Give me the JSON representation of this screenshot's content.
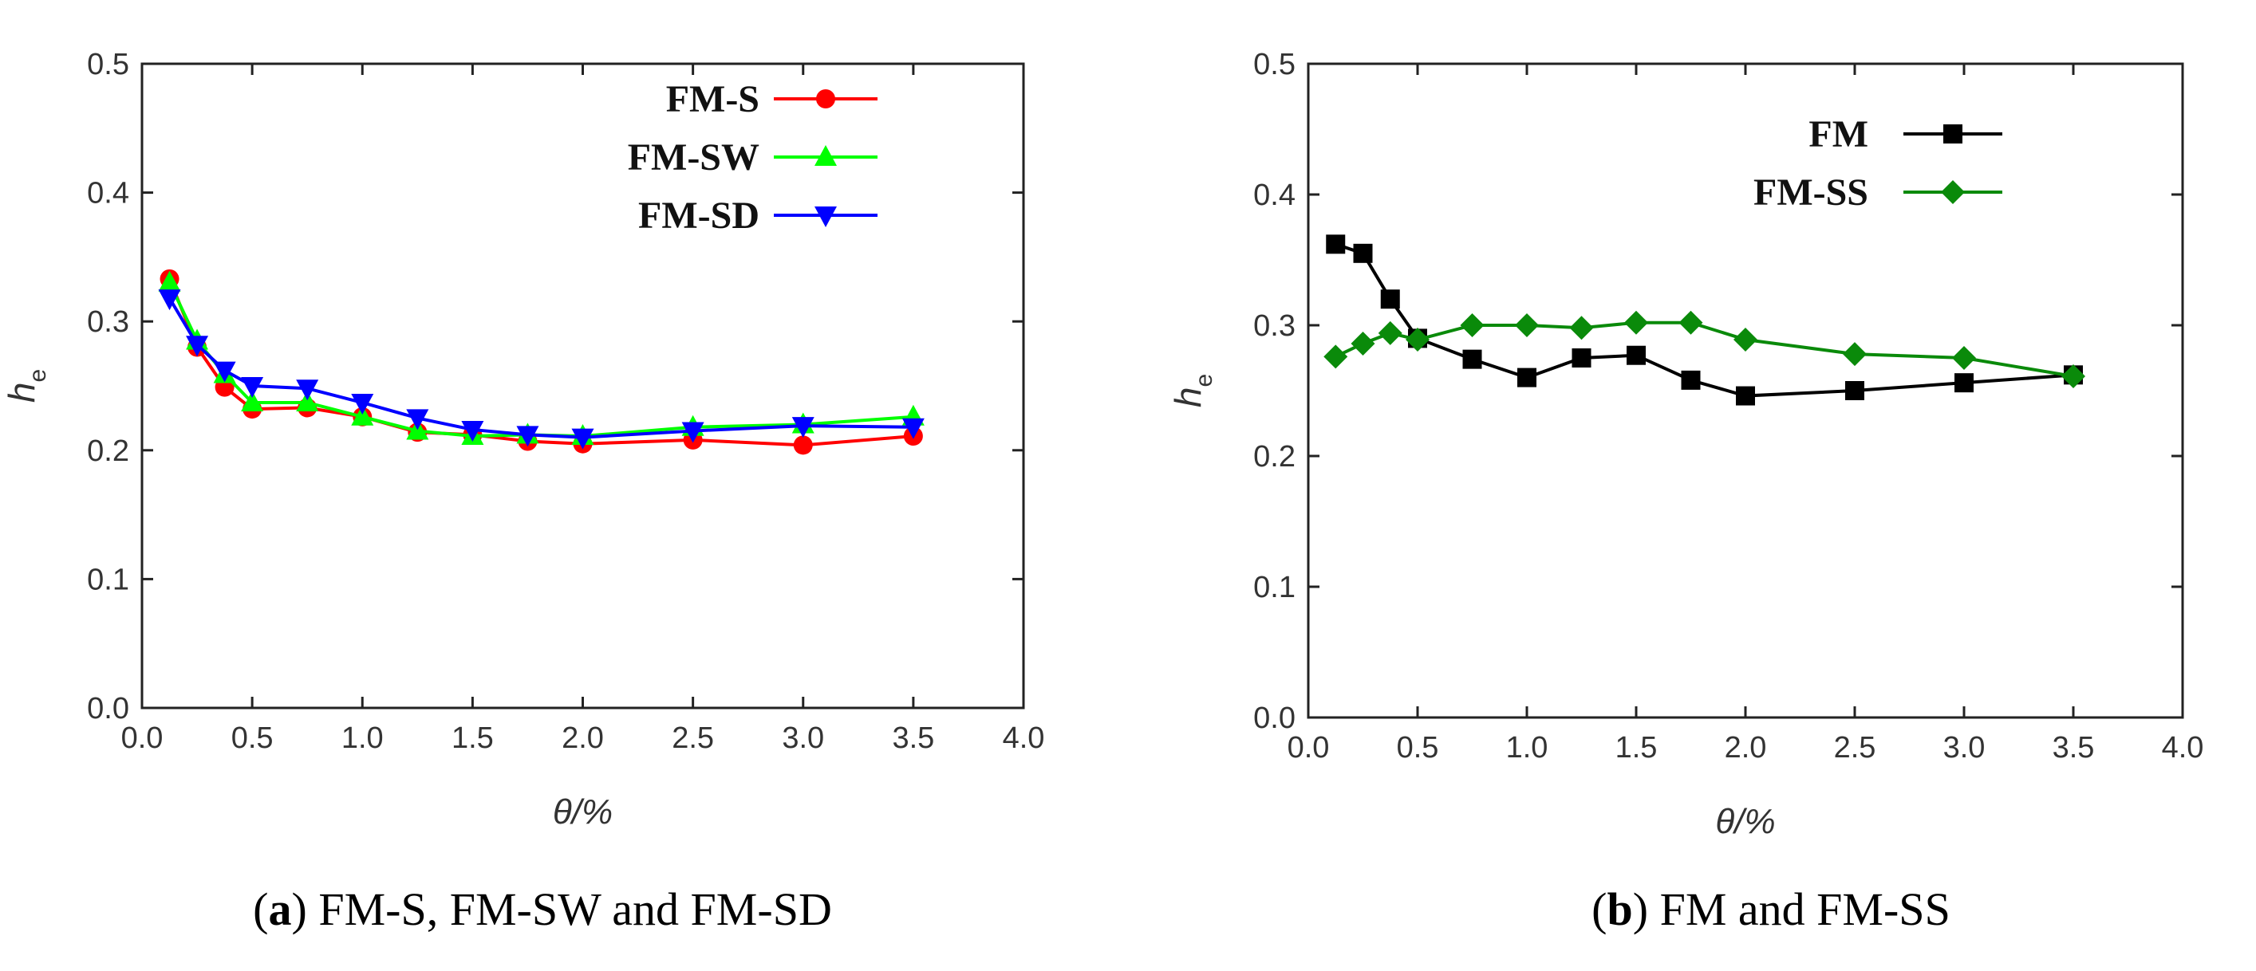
{
  "chart_data": [
    {
      "type": "line",
      "title": "",
      "caption": {
        "letter": "a",
        "text": " FM-S, FM-SW and FM-SD"
      },
      "xlabel": "θ/%",
      "ylabel": {
        "main": "h",
        "sub": "e"
      },
      "xlim": [
        0.0,
        4.0
      ],
      "ylim": [
        0.0,
        0.5
      ],
      "xticks": [
        "0.0",
        "0.5",
        "1.0",
        "1.5",
        "2.0",
        "2.5",
        "3.0",
        "3.5",
        "4.0"
      ],
      "yticks": [
        "0.0",
        "0.1",
        "0.2",
        "0.3",
        "0.4",
        "0.5"
      ],
      "grid": false,
      "legend_position": "top-right",
      "series": [
        {
          "name": "FM-S",
          "color": "#ff0000",
          "marker": "circle",
          "x": [
            0.125,
            0.25,
            0.375,
            0.5,
            0.75,
            1.0,
            1.25,
            1.5,
            1.75,
            2.0,
            2.5,
            3.0,
            3.5
          ],
          "y": [
            0.333,
            0.28,
            0.249,
            0.232,
            0.233,
            0.226,
            0.214,
            0.212,
            0.207,
            0.205,
            0.208,
            0.204,
            0.211
          ]
        },
        {
          "name": "FM-SW",
          "color": "#00ff00",
          "marker": "triangle-up",
          "x": [
            0.125,
            0.25,
            0.375,
            0.5,
            0.75,
            1.0,
            1.25,
            1.5,
            1.75,
            2.0,
            2.5,
            3.0,
            3.5
          ],
          "y": [
            0.33,
            0.285,
            0.259,
            0.237,
            0.237,
            0.226,
            0.215,
            0.211,
            0.212,
            0.211,
            0.218,
            0.22,
            0.226
          ]
        },
        {
          "name": "FM-SD",
          "color": "#0000ff",
          "marker": "triangle-down",
          "x": [
            0.125,
            0.25,
            0.375,
            0.5,
            0.75,
            1.0,
            1.25,
            1.5,
            1.75,
            2.0,
            2.5,
            3.0,
            3.5
          ],
          "y": [
            0.318,
            0.282,
            0.262,
            0.25,
            0.248,
            0.237,
            0.225,
            0.216,
            0.212,
            0.21,
            0.215,
            0.219,
            0.218
          ]
        }
      ]
    },
    {
      "type": "line",
      "title": "",
      "caption": {
        "letter": "b",
        "text": " FM and FM-SS"
      },
      "xlabel": "θ/%",
      "ylabel": {
        "main": "h",
        "sub": "e"
      },
      "xlim": [
        0.0,
        4.0
      ],
      "ylim": [
        0.0,
        0.5
      ],
      "xticks": [
        "0.0",
        "0.5",
        "1.0",
        "1.5",
        "2.0",
        "2.5",
        "3.0",
        "3.5",
        "4.0"
      ],
      "yticks": [
        "0.0",
        "0.1",
        "0.2",
        "0.3",
        "0.4",
        "0.5"
      ],
      "grid": false,
      "legend_position": "top-right",
      "series": [
        {
          "name": "FM",
          "color": "#000000",
          "marker": "square",
          "x": [
            0.125,
            0.25,
            0.375,
            0.5,
            0.75,
            1.0,
            1.25,
            1.5,
            1.75,
            2.0,
            2.5,
            3.0,
            3.5
          ],
          "y": [
            0.362,
            0.355,
            0.32,
            0.29,
            0.274,
            0.26,
            0.275,
            0.277,
            0.258,
            0.246,
            0.25,
            0.256,
            0.262
          ]
        },
        {
          "name": "FM-SS",
          "color": "#0a8a0a",
          "marker": "diamond",
          "x": [
            0.125,
            0.25,
            0.375,
            0.5,
            0.75,
            1.0,
            1.25,
            1.5,
            1.75,
            2.0,
            2.5,
            3.0,
            3.5
          ],
          "y": [
            0.276,
            0.286,
            0.294,
            0.289,
            0.3,
            0.3,
            0.298,
            0.302,
            0.302,
            0.289,
            0.278,
            0.275,
            0.261
          ]
        }
      ]
    }
  ]
}
